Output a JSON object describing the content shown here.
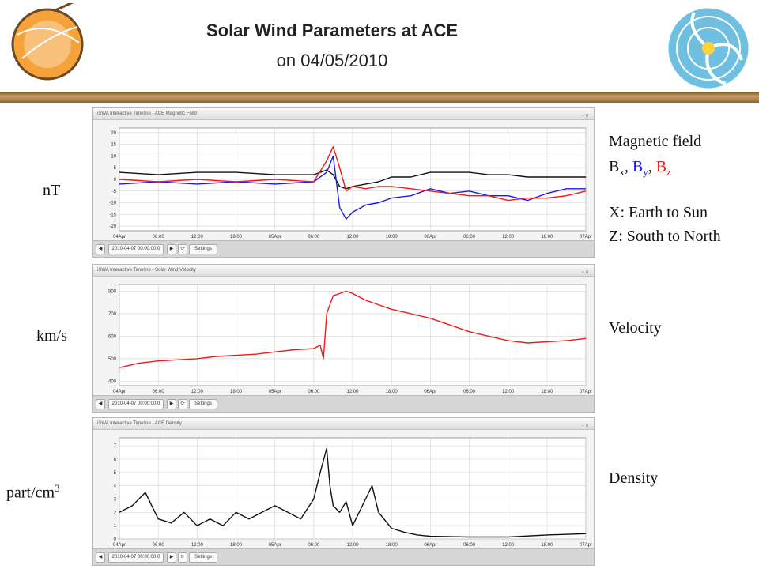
{
  "header": {
    "title": "Solar Wind Parameters at ACE",
    "subtitle": "on 04/05/2010"
  },
  "logos": {
    "left": "sun-logo-icon",
    "right": "heliosphere-logo-icon"
  },
  "units": {
    "b": "nT",
    "v": "km/s",
    "n_base": "part/cm",
    "n_sup": "3"
  },
  "labels": {
    "mag_title": "Magnetic field",
    "bx": "B",
    "bx_sub": "x",
    "sep1": ", ",
    "by": "B",
    "by_sub": "y",
    "sep2": ", ",
    "bz": "B",
    "bz_sub": "z",
    "x_desc": "X: Earth to Sun",
    "z_desc": "Z: South to North",
    "velocity": "Velocity",
    "density": "Density"
  },
  "colors": {
    "bx": "#111111",
    "by": "#1a1aee",
    "bz": "#ee1a1a",
    "velocity": "#ee1a1a",
    "density": "#111111",
    "accent": "#a07a3c"
  },
  "panels": [
    {
      "title": "iSWA Interactive Timeline - ACE Magnetic Field",
      "datetime": "2010-04-07 00:00:00.0",
      "settings": "Settings"
    },
    {
      "title": "iSWA Interactive Timeline - Solar Wind Velocity",
      "datetime": "2010-04-07 00:00:00.0",
      "settings": "Settings"
    },
    {
      "title": "iSWA Interactive Timeline - ACE Density",
      "datetime": "2010-04-07 00:00:00.0",
      "settings": "Settings"
    }
  ],
  "chart_data": [
    {
      "type": "line",
      "x_ticks": [
        "04Apr",
        "06:00",
        "12:00",
        "18:00",
        "05Apr",
        "06:00",
        "12:00",
        "18:00",
        "06Apr",
        "06:00",
        "12:00",
        "18:00",
        "07Apr"
      ],
      "x": [
        0,
        6,
        12,
        18,
        24,
        30,
        32,
        33,
        34,
        35,
        36,
        38,
        40,
        42,
        45,
        48,
        51,
        54,
        57,
        60,
        63,
        66,
        69,
        72
      ],
      "ylim": [
        -22,
        22
      ],
      "y_ticks": [
        20,
        15,
        10,
        5,
        0,
        -5,
        -10,
        -15,
        -20
      ],
      "series": [
        {
          "name": "Bx",
          "values": [
            3,
            2,
            3,
            3,
            2,
            2,
            4,
            2,
            -3,
            -4,
            -3,
            -2,
            -1,
            1,
            1,
            3,
            3,
            3,
            2,
            2,
            1,
            1,
            1,
            1
          ]
        },
        {
          "name": "By",
          "values": [
            -2,
            -1,
            -2,
            -1,
            -2,
            -1,
            3,
            10,
            -12,
            -17,
            -14,
            -11,
            -10,
            -8,
            -7,
            -4,
            -6,
            -5,
            -7,
            -7,
            -9,
            -6,
            -4,
            -4
          ]
        },
        {
          "name": "Bz",
          "values": [
            0,
            -1,
            0,
            -1,
            0,
            -1,
            8,
            14,
            5,
            -5,
            -3,
            -4,
            -3,
            -3,
            -4,
            -5,
            -6,
            -7,
            -7,
            -9,
            -8,
            -8,
            -7,
            -5
          ]
        }
      ]
    },
    {
      "type": "line",
      "x_ticks": [
        "04Apr",
        "06:00",
        "12:00",
        "18:00",
        "05Apr",
        "06:00",
        "12:00",
        "18:00",
        "06Apr",
        "06:00",
        "12:00",
        "18:00",
        "07Apr"
      ],
      "x": [
        0,
        3,
        6,
        9,
        12,
        15,
        18,
        21,
        24,
        27,
        30,
        31,
        31.5,
        32,
        33,
        34,
        35,
        36,
        38,
        40,
        42,
        45,
        48,
        51,
        54,
        57,
        60,
        63,
        66,
        69,
        72
      ],
      "ylim": [
        380,
        830
      ],
      "y_ticks": [
        800,
        700,
        600,
        500,
        400
      ],
      "series": [
        {
          "name": "Velocity",
          "values": [
            460,
            480,
            490,
            495,
            500,
            510,
            515,
            520,
            530,
            540,
            545,
            560,
            500,
            700,
            780,
            790,
            800,
            790,
            760,
            740,
            720,
            700,
            680,
            650,
            620,
            600,
            580,
            570,
            575,
            580,
            590
          ]
        }
      ]
    },
    {
      "type": "line",
      "x_ticks": [
        "04Apr",
        "06:00",
        "12:00",
        "18:00",
        "05Apr",
        "06:00",
        "12:00",
        "18:00",
        "06Apr",
        "06:00",
        "12:00",
        "18:00",
        "07Apr"
      ],
      "x": [
        0,
        2,
        4,
        5,
        6,
        8,
        10,
        12,
        14,
        16,
        18,
        20,
        22,
        24,
        26,
        28,
        30,
        31,
        32,
        32.5,
        33,
        34,
        35,
        36,
        38,
        39,
        40,
        42,
        44,
        46,
        48,
        54,
        60,
        66,
        72
      ],
      "ylim": [
        0,
        7.6
      ],
      "y_ticks": [
        7,
        6,
        5,
        4,
        3,
        2,
        1,
        0
      ],
      "series": [
        {
          "name": "Density",
          "values": [
            2,
            2.5,
            3.5,
            2.5,
            1.5,
            1.2,
            2,
            1,
            1.5,
            1,
            2,
            1.5,
            2,
            2.5,
            2,
            1.5,
            3,
            5,
            6.8,
            4,
            2.5,
            2,
            2.8,
            1,
            3,
            4,
            2,
            0.8,
            0.5,
            0.3,
            0.2,
            0.15,
            0.15,
            0.3,
            0.4
          ]
        }
      ]
    }
  ]
}
